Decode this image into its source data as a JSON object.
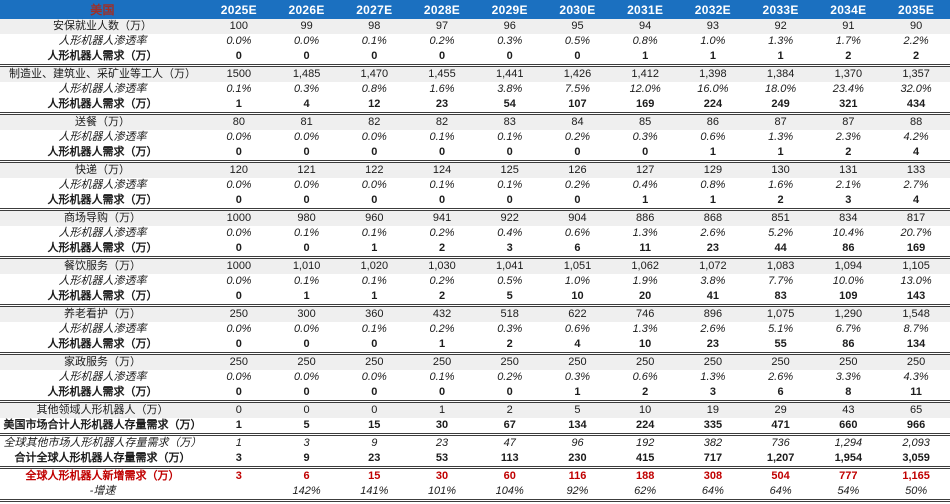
{
  "colors": {
    "header_bg": "#1B70C0",
    "header_text": "#FFFFFF",
    "title_text": "#9E3028",
    "band_bg": "#EFEFEF",
    "red_text": "#C00000",
    "border": "#3C3C3C"
  },
  "chart_data": {
    "type": "table",
    "title": "美国",
    "columns": [
      "2025E",
      "2026E",
      "2027E",
      "2028E",
      "2029E",
      "2030E",
      "2031E",
      "2032E",
      "2033E",
      "2034E",
      "2035E"
    ],
    "rows": [
      {
        "label": "安保就业人数（万）",
        "style": "cat",
        "break": false,
        "values": [
          "100",
          "99",
          "98",
          "97",
          "96",
          "95",
          "94",
          "93",
          "92",
          "91",
          "90"
        ]
      },
      {
        "label": "人形机器人渗透率",
        "style": "pen",
        "break": false,
        "values": [
          "0.0%",
          "0.0%",
          "0.1%",
          "0.2%",
          "0.3%",
          "0.5%",
          "0.8%",
          "1.0%",
          "1.3%",
          "1.7%",
          "2.2%"
        ]
      },
      {
        "label": "人形机器人需求（万）",
        "style": "dem",
        "break": false,
        "values": [
          "0",
          "0",
          "0",
          "0",
          "0",
          "0",
          "1",
          "1",
          "1",
          "2",
          "2"
        ]
      },
      {
        "label": "制造业、建筑业、采矿业等工人（万）",
        "style": "cat",
        "break": true,
        "values": [
          "1500",
          "1,485",
          "1,470",
          "1,455",
          "1,441",
          "1,426",
          "1,412",
          "1,398",
          "1,384",
          "1,370",
          "1,357"
        ]
      },
      {
        "label": "人形机器人渗透率",
        "style": "pen",
        "break": false,
        "values": [
          "0.1%",
          "0.3%",
          "0.8%",
          "1.6%",
          "3.8%",
          "7.5%",
          "12.0%",
          "16.0%",
          "18.0%",
          "23.4%",
          "32.0%"
        ]
      },
      {
        "label": "人形机器人需求（万）",
        "style": "dem",
        "break": false,
        "values": [
          "1",
          "4",
          "12",
          "23",
          "54",
          "107",
          "169",
          "224",
          "249",
          "321",
          "434"
        ]
      },
      {
        "label": "送餐（万）",
        "style": "cat",
        "break": true,
        "values": [
          "80",
          "81",
          "82",
          "82",
          "83",
          "84",
          "85",
          "86",
          "87",
          "87",
          "88"
        ]
      },
      {
        "label": "人形机器人渗透率",
        "style": "pen",
        "break": false,
        "values": [
          "0.0%",
          "0.0%",
          "0.0%",
          "0.1%",
          "0.1%",
          "0.2%",
          "0.3%",
          "0.6%",
          "1.3%",
          "2.3%",
          "4.2%"
        ]
      },
      {
        "label": "人形机器人需求（万）",
        "style": "dem",
        "break": false,
        "values": [
          "0",
          "0",
          "0",
          "0",
          "0",
          "0",
          "0",
          "1",
          "1",
          "2",
          "4"
        ]
      },
      {
        "label": "快递（万）",
        "style": "cat",
        "break": true,
        "values": [
          "120",
          "121",
          "122",
          "124",
          "125",
          "126",
          "127",
          "129",
          "130",
          "131",
          "133"
        ]
      },
      {
        "label": "人形机器人渗透率",
        "style": "pen",
        "break": false,
        "values": [
          "0.0%",
          "0.0%",
          "0.0%",
          "0.1%",
          "0.1%",
          "0.2%",
          "0.4%",
          "0.8%",
          "1.6%",
          "2.1%",
          "2.7%"
        ]
      },
      {
        "label": "人形机器人需求（万）",
        "style": "dem",
        "break": false,
        "values": [
          "0",
          "0",
          "0",
          "0",
          "0",
          "0",
          "1",
          "1",
          "2",
          "3",
          "4"
        ]
      },
      {
        "label": "商场导购（万）",
        "style": "cat",
        "break": true,
        "values": [
          "1000",
          "980",
          "960",
          "941",
          "922",
          "904",
          "886",
          "868",
          "851",
          "834",
          "817"
        ]
      },
      {
        "label": "人形机器人渗透率",
        "style": "pen",
        "break": false,
        "values": [
          "0.0%",
          "0.1%",
          "0.1%",
          "0.2%",
          "0.4%",
          "0.6%",
          "1.3%",
          "2.6%",
          "5.2%",
          "10.4%",
          "20.7%"
        ]
      },
      {
        "label": "人形机器人需求（万）",
        "style": "dem",
        "break": false,
        "values": [
          "0",
          "0",
          "1",
          "2",
          "3",
          "6",
          "11",
          "23",
          "44",
          "86",
          "169"
        ]
      },
      {
        "label": "餐饮服务（万）",
        "style": "cat",
        "break": true,
        "values": [
          "1000",
          "1,010",
          "1,020",
          "1,030",
          "1,041",
          "1,051",
          "1,062",
          "1,072",
          "1,083",
          "1,094",
          "1,105"
        ]
      },
      {
        "label": "人形机器人渗透率",
        "style": "pen",
        "break": false,
        "values": [
          "0.0%",
          "0.1%",
          "0.1%",
          "0.2%",
          "0.5%",
          "1.0%",
          "1.9%",
          "3.8%",
          "7.7%",
          "10.0%",
          "13.0%"
        ]
      },
      {
        "label": "人形机器人需求（万）",
        "style": "dem",
        "break": false,
        "values": [
          "0",
          "1",
          "1",
          "2",
          "5",
          "10",
          "20",
          "41",
          "83",
          "109",
          "143"
        ]
      },
      {
        "label": "养老看护（万）",
        "style": "cat",
        "break": true,
        "values": [
          "250",
          "300",
          "360",
          "432",
          "518",
          "622",
          "746",
          "896",
          "1,075",
          "1,290",
          "1,548"
        ]
      },
      {
        "label": "人形机器人渗透率",
        "style": "pen",
        "break": false,
        "values": [
          "0.0%",
          "0.0%",
          "0.1%",
          "0.2%",
          "0.3%",
          "0.6%",
          "1.3%",
          "2.6%",
          "5.1%",
          "6.7%",
          "8.7%"
        ]
      },
      {
        "label": "人形机器人需求（万）",
        "style": "dem",
        "break": false,
        "values": [
          "0",
          "0",
          "0",
          "1",
          "2",
          "4",
          "10",
          "23",
          "55",
          "86",
          "134"
        ]
      },
      {
        "label": "家政服务（万）",
        "style": "cat",
        "break": true,
        "values": [
          "250",
          "250",
          "250",
          "250",
          "250",
          "250",
          "250",
          "250",
          "250",
          "250",
          "250"
        ]
      },
      {
        "label": "人形机器人渗透率",
        "style": "pen",
        "break": false,
        "values": [
          "0.0%",
          "0.0%",
          "0.0%",
          "0.1%",
          "0.2%",
          "0.3%",
          "0.6%",
          "1.3%",
          "2.6%",
          "3.3%",
          "4.3%"
        ]
      },
      {
        "label": "人形机器人需求（万）",
        "style": "dem",
        "break": false,
        "values": [
          "0",
          "0",
          "0",
          "0",
          "0",
          "1",
          "2",
          "3",
          "6",
          "8",
          "11"
        ]
      },
      {
        "label": "其他领域人形机器人（万）",
        "style": "cat",
        "break": true,
        "values": [
          "0",
          "0",
          "0",
          "1",
          "2",
          "5",
          "10",
          "19",
          "29",
          "43",
          "65"
        ]
      },
      {
        "label": "美国市场合计人形机器人存量需求（万）",
        "style": "dem",
        "break": false,
        "values": [
          "1",
          "5",
          "15",
          "30",
          "67",
          "134",
          "224",
          "335",
          "471",
          "660",
          "966"
        ]
      },
      {
        "label": "全球其他市场人形机器人存量需求（万）",
        "style": "pen",
        "break": true,
        "values": [
          "1",
          "3",
          "9",
          "23",
          "47",
          "96",
          "192",
          "382",
          "736",
          "1,294",
          "2,093"
        ]
      },
      {
        "label": "合计全球人形机器人存量需求（万）",
        "style": "dem",
        "break": false,
        "values": [
          "3",
          "9",
          "23",
          "53",
          "113",
          "230",
          "415",
          "717",
          "1,207",
          "1,954",
          "3,059"
        ]
      },
      {
        "label": "全球人形机器人新增需求（万）",
        "style": "red",
        "break": true,
        "values": [
          "3",
          "6",
          "15",
          "30",
          "60",
          "116",
          "188",
          "308",
          "504",
          "777",
          "1,165"
        ]
      },
      {
        "label": "-增速",
        "style": "pen",
        "break": false,
        "values": [
          "",
          "142%",
          "141%",
          "101%",
          "104%",
          "92%",
          "62%",
          "64%",
          "64%",
          "54%",
          "50%"
        ]
      }
    ]
  }
}
